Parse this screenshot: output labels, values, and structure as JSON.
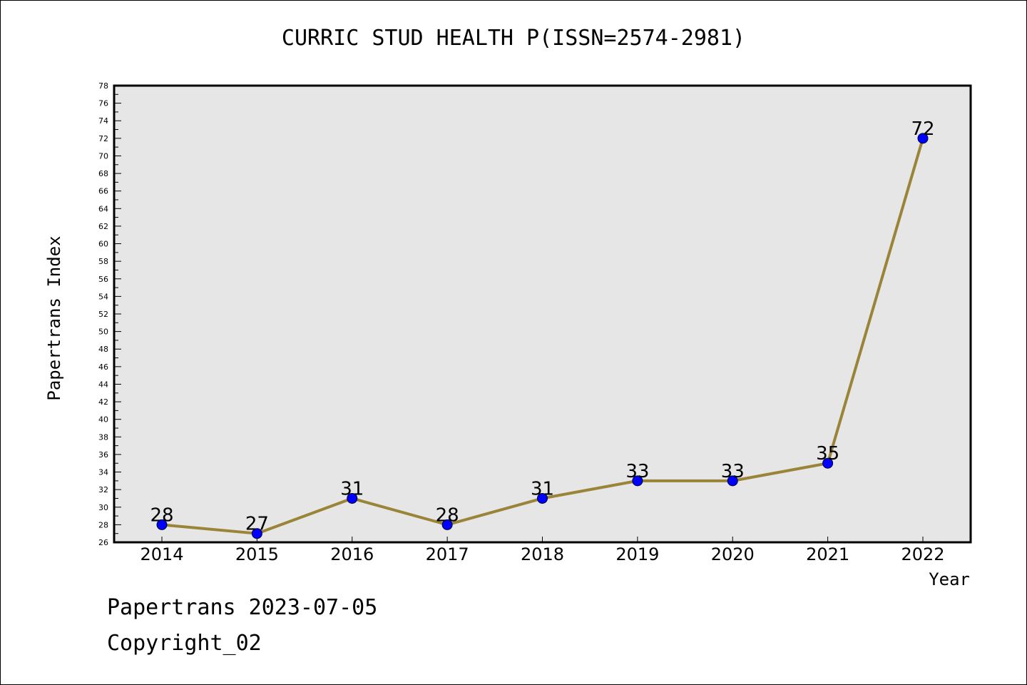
{
  "chart_data": {
    "type": "line",
    "title": "CURRIC STUD HEALTH P(ISSN=2574-2981)",
    "xlabel": "Year",
    "ylabel": "Papertrans Index",
    "x": [
      "2014",
      "2015",
      "2016",
      "2017",
      "2018",
      "2019",
      "2020",
      "2021",
      "2022"
    ],
    "series": [
      {
        "values": [
          28,
          27,
          31,
          28,
          31,
          33,
          33,
          35,
          72
        ]
      }
    ],
    "ylim": [
      26,
      78
    ],
    "ytick_step": 2,
    "data_labels": true,
    "grid": false,
    "colors": {
      "line": "#9a8438",
      "marker": "#0000ff",
      "plot_background": "#e6e6e6"
    }
  },
  "footer": {
    "line1": "Papertrans 2023-07-05",
    "line2": "Copyright_02"
  }
}
